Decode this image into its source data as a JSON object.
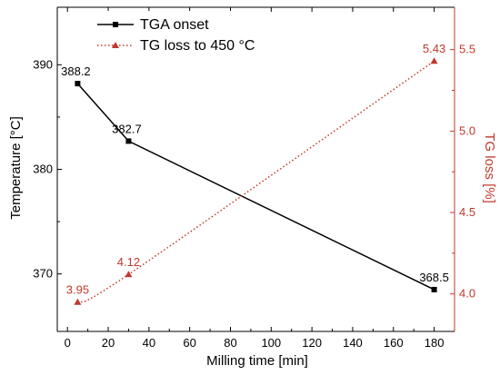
{
  "chart_data": {
    "type": "line",
    "xlabel": "Milling time [min]",
    "ylabel_left": "Temperature [°C]",
    "ylabel_right": "TG loss [%]",
    "x": [
      5,
      30,
      180
    ],
    "xlim": [
      -5,
      190
    ],
    "ylim_left": [
      364.5,
      395.5
    ],
    "ylim_right": [
      3.77,
      5.76
    ],
    "xticks": [
      0,
      20,
      40,
      60,
      80,
      100,
      120,
      140,
      160,
      180
    ],
    "yticks_left": [
      370,
      380,
      390
    ],
    "yticks_right": [
      4.0,
      4.5,
      5.0,
      5.5
    ],
    "grid": false,
    "legend_position": "top-left",
    "series": [
      {
        "name": "TGA onset",
        "axis": "left",
        "color": "#000000",
        "line_style": "solid",
        "marker": "square",
        "values": [
          388.2,
          382.7,
          368.5
        ],
        "labels": [
          "388.2",
          "382.7",
          "368.5"
        ]
      },
      {
        "name": "TG loss to 450 °C",
        "axis": "right",
        "color": "#c0392b",
        "line_style": "dotted",
        "marker": "triangle",
        "values": [
          3.95,
          4.12,
          5.43
        ],
        "labels": [
          "3.95",
          "4.12",
          "5.43"
        ]
      }
    ]
  }
}
